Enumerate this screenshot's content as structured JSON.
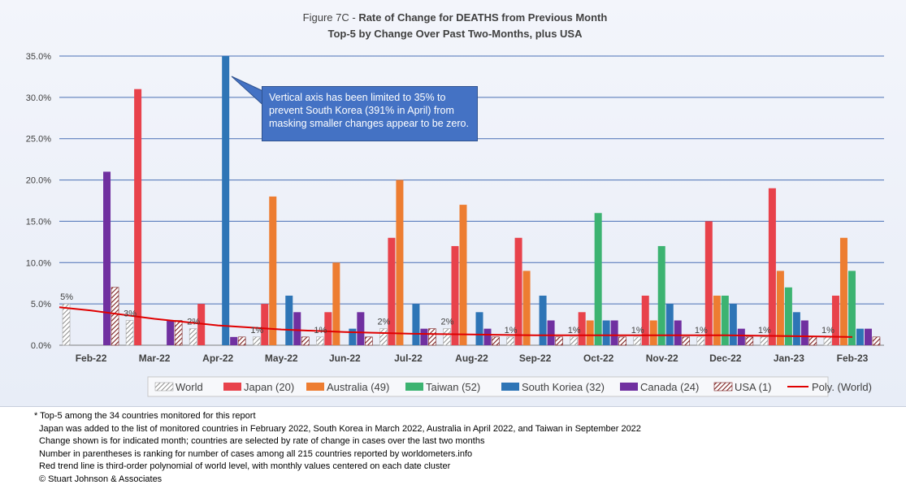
{
  "chart_data": {
    "type": "bar",
    "title_prefix": "Figure 7C - ",
    "title_bold": "Rate of Change for DEATHS from Previous Month",
    "subtitle": "Top-5 by Change Over Past Two-Months, plus USA",
    "ylim": [
      0,
      35
    ],
    "yticks": [
      "0.0%",
      "5.0%",
      "10.0%",
      "15.0%",
      "20.0%",
      "25.0%",
      "30.0%",
      "35.0%"
    ],
    "categories": [
      "Feb-22",
      "Mar-22",
      "Apr-22",
      "May-22",
      "Jun-22",
      "Jul-22",
      "Aug-22",
      "Sep-22",
      "Oct-22",
      "Nov-22",
      "Dec-22",
      "Jan-23",
      "Feb-23"
    ],
    "series": [
      {
        "name": "World",
        "color": "#a6a6a6",
        "pattern": "hatch-gray",
        "values": [
          5,
          3,
          2,
          1,
          1,
          2,
          2,
          1,
          1,
          1,
          1,
          1,
          1
        ]
      },
      {
        "name": "Japan (20)",
        "color": "#e8424b",
        "values": [
          null,
          31,
          5,
          5,
          4,
          13,
          12,
          13,
          4,
          6,
          15,
          19,
          6
        ]
      },
      {
        "name": "Australia (49)",
        "color": "#ed7d31",
        "values": [
          null,
          null,
          null,
          18,
          10,
          20,
          17,
          9,
          3,
          3,
          6,
          9,
          13
        ]
      },
      {
        "name": "Taiwan (52)",
        "color": "#3cb371",
        "values": [
          null,
          null,
          null,
          null,
          null,
          null,
          null,
          null,
          16,
          12,
          6,
          7,
          9
        ]
      },
      {
        "name": "South Koriea (32)",
        "color": "#2e75b6",
        "values": [
          null,
          null,
          35,
          6,
          2,
          5,
          4,
          6,
          3,
          5,
          5,
          4,
          2
        ]
      },
      {
        "name": "Canada (24)",
        "color": "#7030a0",
        "values": [
          21,
          3,
          1,
          4,
          4,
          2,
          2,
          3,
          3,
          3,
          2,
          3,
          2
        ]
      },
      {
        "name": "USA (1)",
        "color": "#7b1e1e",
        "pattern": "hatch-dark",
        "values": [
          7,
          3,
          1,
          1,
          1,
          2,
          1,
          1,
          1,
          1,
          1,
          1,
          1
        ]
      }
    ],
    "world_labels": [
      "5%",
      "3%",
      "2%",
      "1%",
      "1%",
      "2%",
      "2%",
      "1%",
      "1%",
      "1%",
      "1%",
      "1%",
      "1%"
    ],
    "trend": {
      "name": "Poly. (World)",
      "color": "#e00000",
      "values": [
        4.2,
        3.2,
        2.4,
        1.9,
        1.6,
        1.4,
        1.3,
        1.2,
        1.2,
        1.2,
        1.2,
        1.1,
        1.0
      ]
    },
    "legend_position": "bottom",
    "grid": true
  },
  "annotation": "Vertical axis has been limited to 35% to prevent South Korea (391% in April) from masking smaller changes appear to be zero.",
  "footnotes": [
    "* Top-5 among the 34 countries monitored for this report",
    "Japan was added to the list of monitored countries in February 2022, South Korea in March 2022, Australia in April 2022, and Taiwan in September 2022",
    "Change shown is for indicated month; countries are selected by rate of change in cases over the last two months",
    "Number in parentheses is ranking for number of cases among all 215 countries reported by worldometers.info",
    "Red trend line is third-order polynomial of world level, with monthly values centered on each date cluster",
    "© Stuart Johnson & Associates"
  ]
}
